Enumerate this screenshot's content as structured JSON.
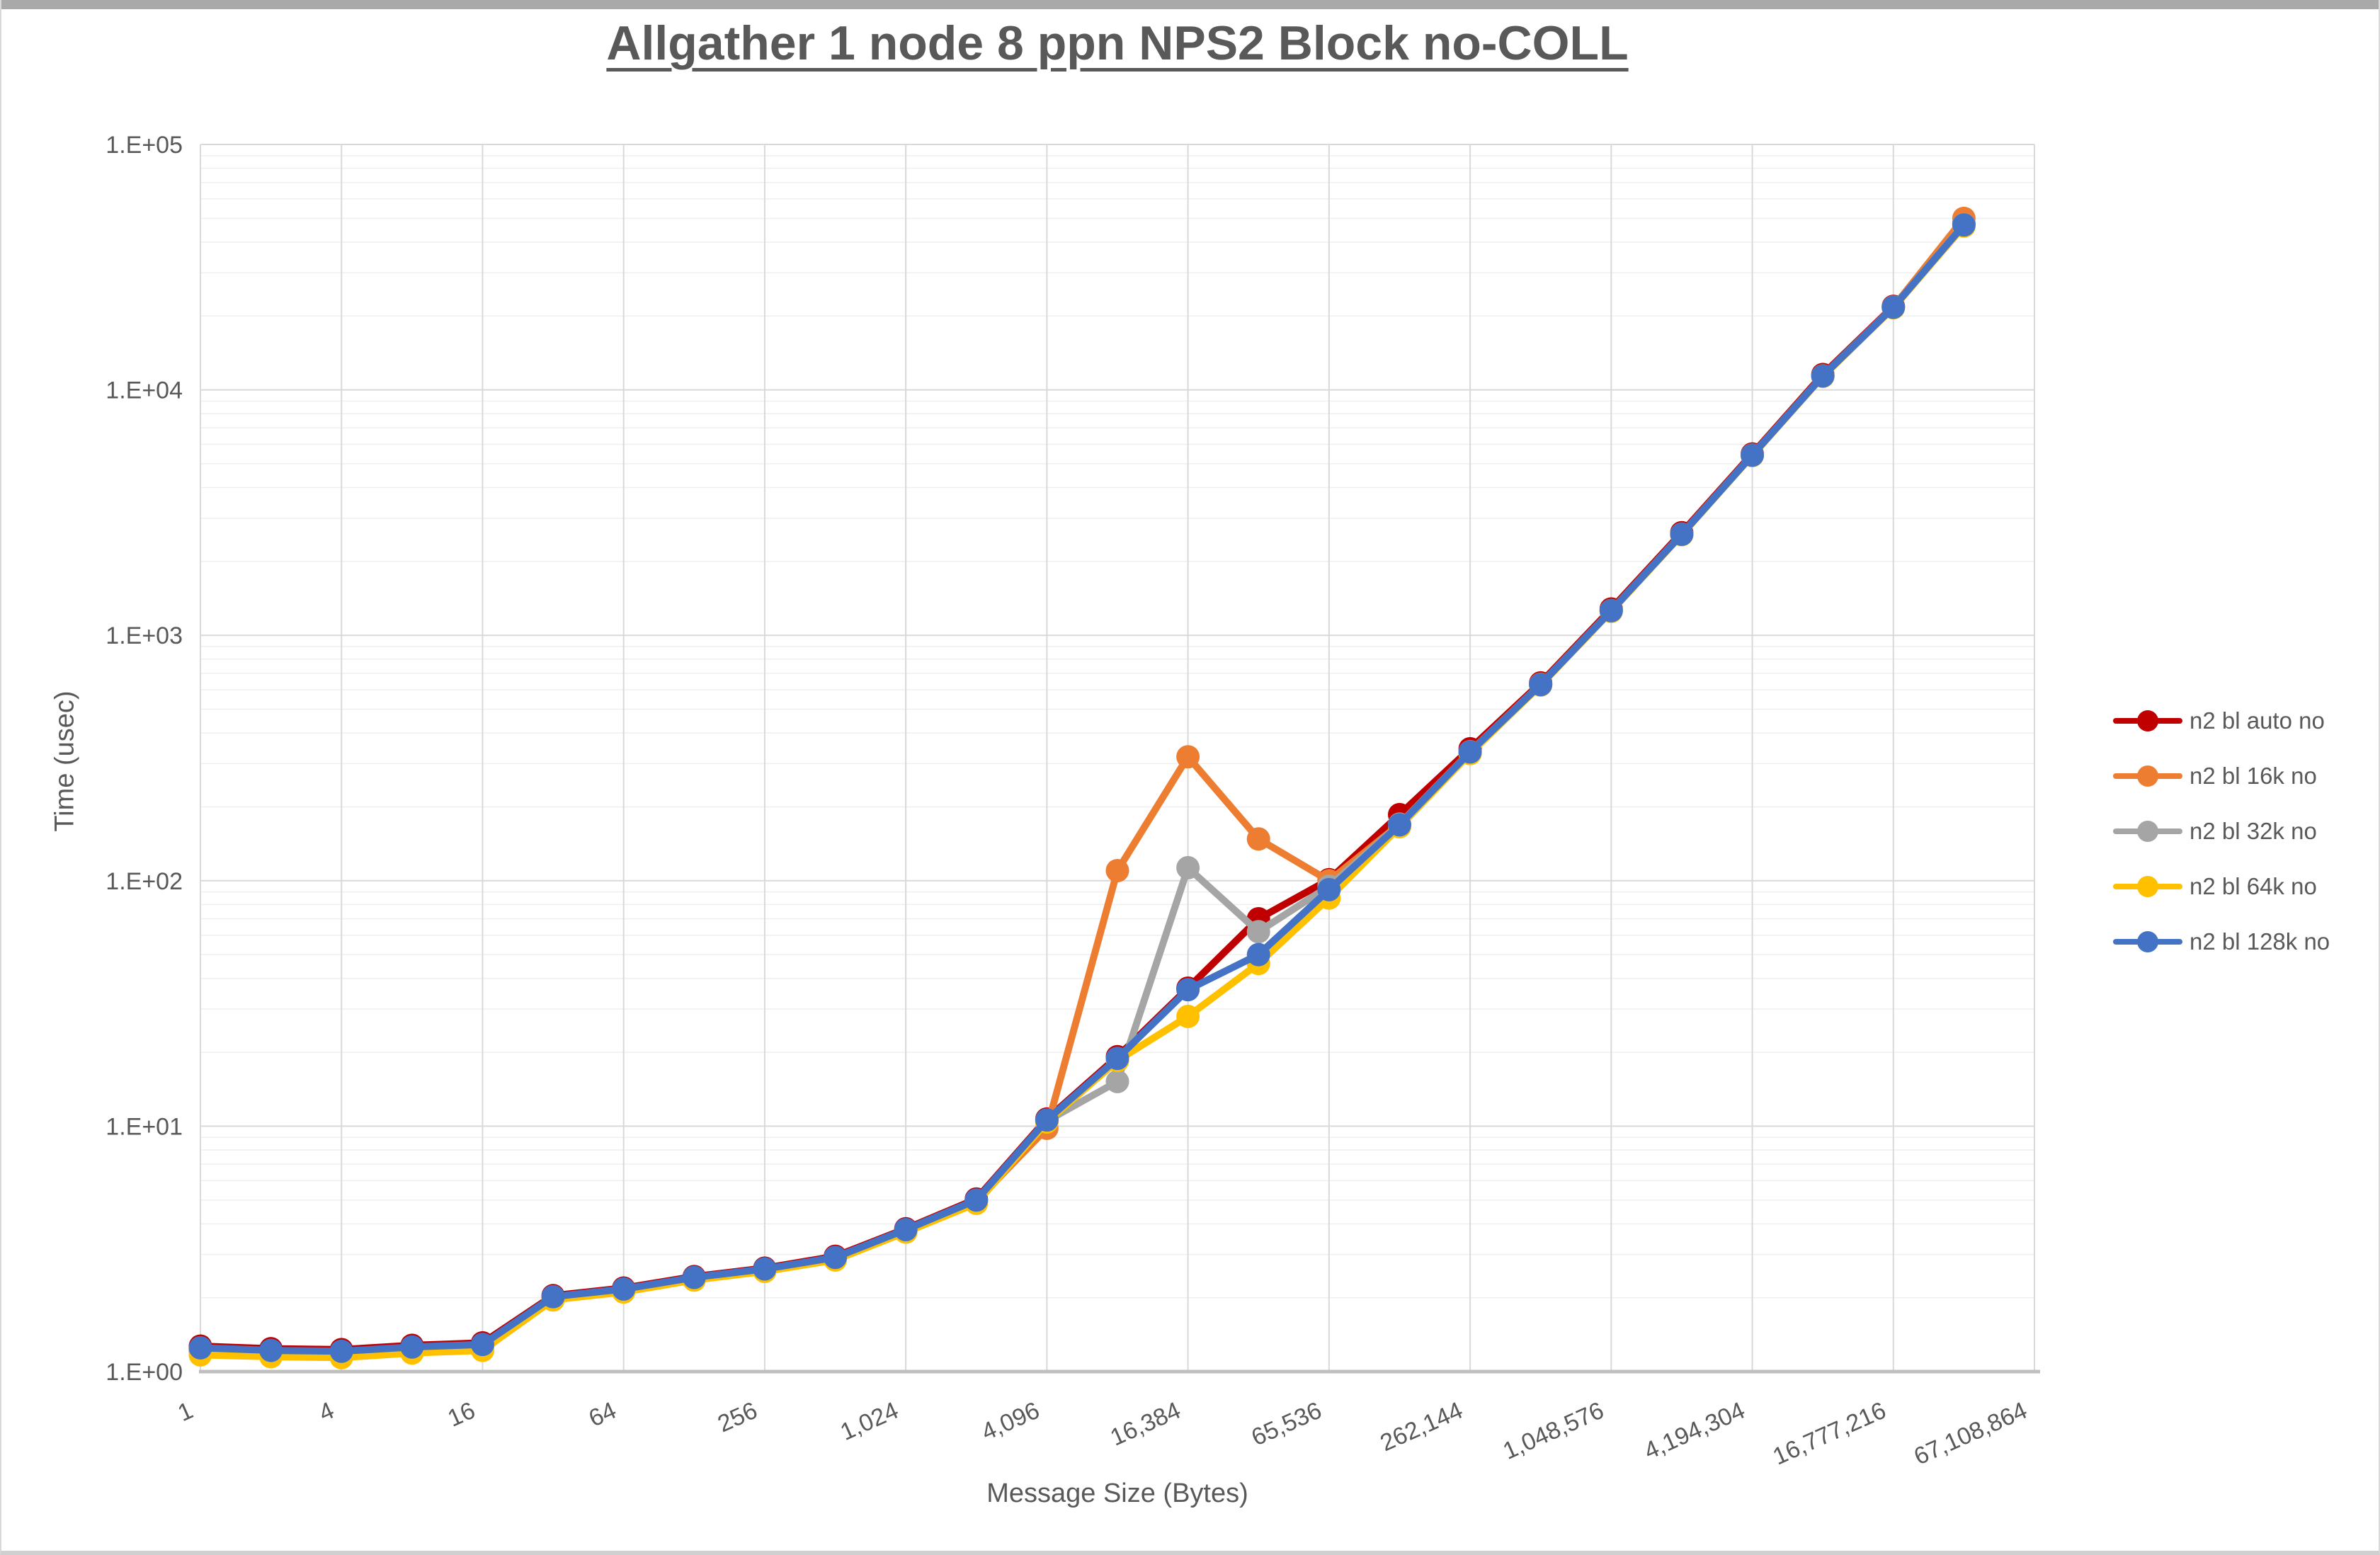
{
  "page": {
    "background": "#FFFFFF",
    "top_strip_color": "#A9A9A9",
    "frame_color": "#D9D9D9",
    "text_color": "#595959"
  },
  "chart": {
    "title": {
      "text": "Allgather 1 node 8 ppn NPS2 Block no-COLL",
      "color": "#595959"
    },
    "x_axis": {
      "title": "Message Size (Bytes)",
      "tick_labels": [
        "1",
        "4",
        "16",
        "64",
        "256",
        "1,024",
        "4,096",
        "16,384",
        "65,536",
        "262,144",
        "1,048,576",
        "4,194,304",
        "16,777,216",
        "67,108,864"
      ],
      "color": "#595959"
    },
    "y_axis": {
      "title": "Time (usec)",
      "tick_labels": [
        "1.E+00",
        "1.E+01",
        "1.E+02",
        "1.E+03",
        "1.E+04",
        "1.E+05"
      ],
      "color": "#595959"
    },
    "legend": [
      {
        "label": "n2 bl auto no",
        "color": "#C00000"
      },
      {
        "label": "n2 bl 16k no",
        "color": "#ED7D31"
      },
      {
        "label": "n2 bl 32k no",
        "color": "#A5A5A5"
      },
      {
        "label": "n2 bl 64k no",
        "color": "#FFC000"
      },
      {
        "label": "n2 bl 128k no",
        "color": "#4472C4"
      }
    ],
    "grid": {
      "major_color": "#D9D9D9",
      "minor_color": "#EFEFEF",
      "axis_line_color": "#BFBFBF"
    }
  },
  "chart_data": {
    "type": "line",
    "title": "Allgather 1 node 8 ppn NPS2 Block no-COLL",
    "xlabel": "Message Size (Bytes)",
    "ylabel": "Time (usec)",
    "x_scale": "log2",
    "y_scale": "log10",
    "ylim": [
      1,
      100000
    ],
    "x_axis_tick_values": [
      1,
      4,
      16,
      64,
      256,
      1024,
      4096,
      16384,
      65536,
      262144,
      1048576,
      4194304,
      16777216,
      67108864
    ],
    "legend_position": "right",
    "grid": "on",
    "x": [
      1,
      2,
      4,
      8,
      16,
      32,
      64,
      128,
      256,
      512,
      1024,
      2048,
      4096,
      8192,
      16384,
      32768,
      65536,
      131072,
      262144,
      524288,
      1048576,
      2097152,
      4194304,
      8388608,
      16777216,
      33554432
    ],
    "series": [
      {
        "name": "n2 bl auto no",
        "color": "#C00000",
        "values": [
          1.27,
          1.24,
          1.23,
          1.28,
          1.31,
          2.04,
          2.19,
          2.44,
          2.64,
          2.95,
          3.82,
          5.05,
          10.7,
          19.2,
          36.5,
          70,
          101,
          186,
          345,
          640,
          1280,
          2620,
          5480,
          11550,
          21900,
          47500
        ]
      },
      {
        "name": "n2 bl 16k no",
        "color": "#ED7D31",
        "values": [
          1.22,
          1.19,
          1.18,
          1.23,
          1.26,
          2.0,
          2.15,
          2.4,
          2.6,
          2.9,
          3.76,
          4.95,
          9.8,
          110,
          320,
          148,
          100,
          170,
          336,
          632,
          1262,
          2585,
          5430,
          11420,
          21750,
          50000
        ]
      },
      {
        "name": "n2 bl 32k no",
        "color": "#A5A5A5",
        "values": [
          1.21,
          1.18,
          1.17,
          1.22,
          1.25,
          1.99,
          2.14,
          2.39,
          2.59,
          2.89,
          3.74,
          4.92,
          10.5,
          15.2,
          113,
          62,
          95,
          170,
          334,
          630,
          1258,
          2578,
          5415,
          11390,
          21700,
          47200
        ]
      },
      {
        "name": "n2 bl 64k no",
        "color": "#FFC000",
        "values": [
          1.17,
          1.15,
          1.14,
          1.19,
          1.22,
          1.96,
          2.11,
          2.36,
          2.56,
          2.85,
          3.7,
          4.85,
          10.4,
          18.5,
          28,
          46,
          85,
          166,
          330,
          627,
          1252,
          2570,
          5400,
          11350,
          21600,
          46500
        ]
      },
      {
        "name": "n2 bl 128k no",
        "color": "#4472C4",
        "values": [
          1.25,
          1.22,
          1.21,
          1.26,
          1.29,
          2.02,
          2.17,
          2.42,
          2.62,
          2.92,
          3.79,
          5.0,
          10.6,
          18.9,
          36,
          50,
          92,
          169,
          335,
          630,
          1260,
          2580,
          5420,
          11400,
          21700,
          47000
        ]
      }
    ]
  }
}
